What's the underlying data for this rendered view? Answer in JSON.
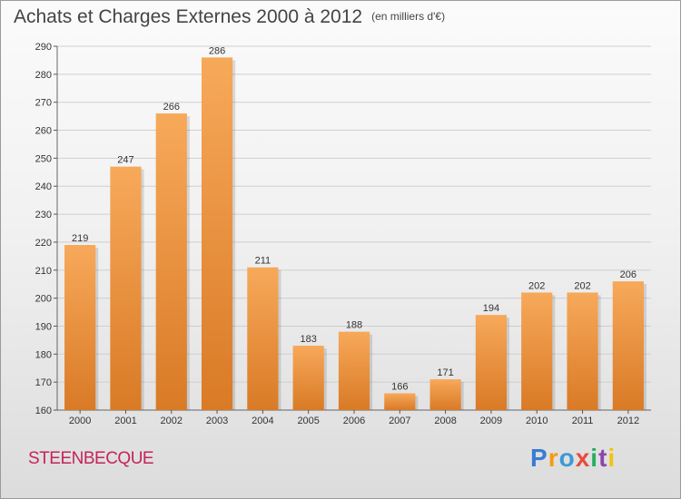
{
  "title": "Achats et Charges Externes 2000 à 2012",
  "unit": "(en milliers d'€)",
  "commune": "STEENBECQUE",
  "logo": {
    "letters": [
      "P",
      "r",
      "o",
      "x",
      "i",
      "t",
      "i"
    ],
    "colors": [
      "#3a7bd5",
      "#f39c12",
      "#3a9ad9",
      "#e74c3c",
      "#27ae60",
      "#8e44ad",
      "#f1c40f"
    ]
  },
  "colors": {
    "bar_light": "#f7a95a",
    "bar_dark": "#d97a26",
    "grid": "#cfcfcf"
  },
  "chart_data": {
    "type": "bar",
    "categories": [
      "2000",
      "2001",
      "2002",
      "2003",
      "2004",
      "2005",
      "2006",
      "2007",
      "2008",
      "2009",
      "2010",
      "2011",
      "2012"
    ],
    "values": [
      219,
      247,
      266,
      286,
      211,
      183,
      188,
      166,
      171,
      194,
      202,
      202,
      206
    ],
    "title": "Achats et Charges Externes 2000 à 2012",
    "subtitle": "(en milliers d'€)",
    "ylim": [
      160,
      290
    ],
    "yticks": [
      160,
      170,
      180,
      190,
      200,
      210,
      220,
      230,
      240,
      250,
      260,
      270,
      280,
      290
    ],
    "grid": true,
    "data_labels": true
  }
}
